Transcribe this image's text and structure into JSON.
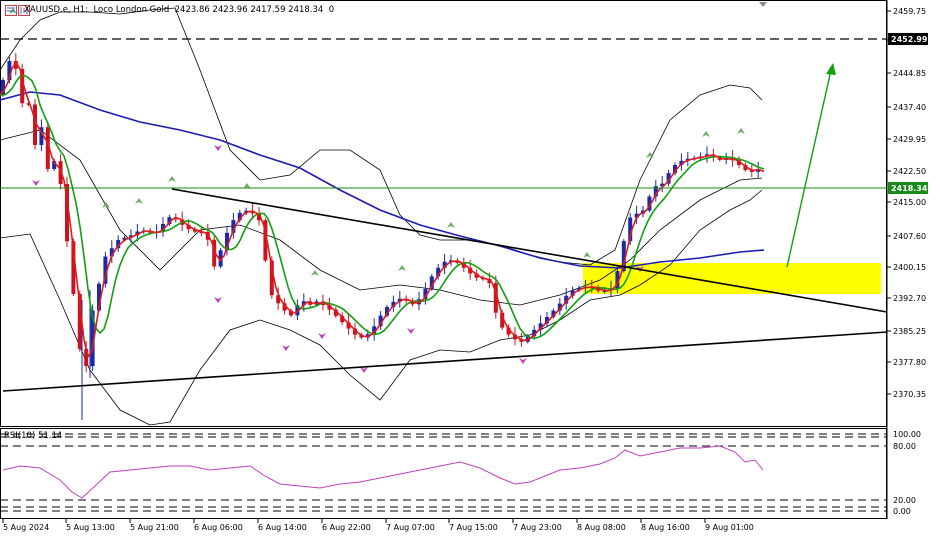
{
  "header": {
    "symbol": "XAUUSD.e",
    "timeframe": "H1",
    "description": "Loco London Gold",
    "ohlc": "2423.86 2423.96 2417.59 2418.34",
    "spread": "0"
  },
  "price_axis": {
    "ticks": [
      "2459.75",
      "2452.15",
      "2444.85",
      "2437.40",
      "2429.95",
      "2422.50",
      "2415.00",
      "2407.60",
      "2400.15",
      "2392.70",
      "2385.25",
      "2377.80",
      "2370.35"
    ],
    "current_price_label": "2418.34",
    "resistance_label": "2452.99"
  },
  "rsi": {
    "label": "RSI(10) 51.14",
    "levels": [
      "100.00",
      "80.00",
      "20.00",
      "0.00"
    ]
  },
  "time_axis": {
    "labels": [
      "5 Aug 2024",
      "5 Aug 13:00",
      "5 Aug 21:00",
      "6 Aug 06:00",
      "6 Aug 14:00",
      "6 Aug 22:00",
      "7 Aug 07:00",
      "7 Aug 15:00",
      "7 Aug 23:00",
      "8 Aug 08:00",
      "8 Aug 16:00",
      "9 Aug 01:00"
    ]
  },
  "colors": {
    "bull": "#1a2aa8",
    "bear": "#c8141e",
    "ma_fast": "#e31a1c",
    "ma_mid": "#10a010",
    "ma_slow": "#1c1cb0",
    "bands": "#000000",
    "rsi": "#c040c0",
    "zone": "#ffff00",
    "arrow": "#10a010",
    "fractal_up": "#6aaa6a",
    "fractal_down": "#c040c0"
  },
  "icons": [
    "chart-window-icon",
    "indicators-icon",
    "scroll-marker-icon"
  ]
}
